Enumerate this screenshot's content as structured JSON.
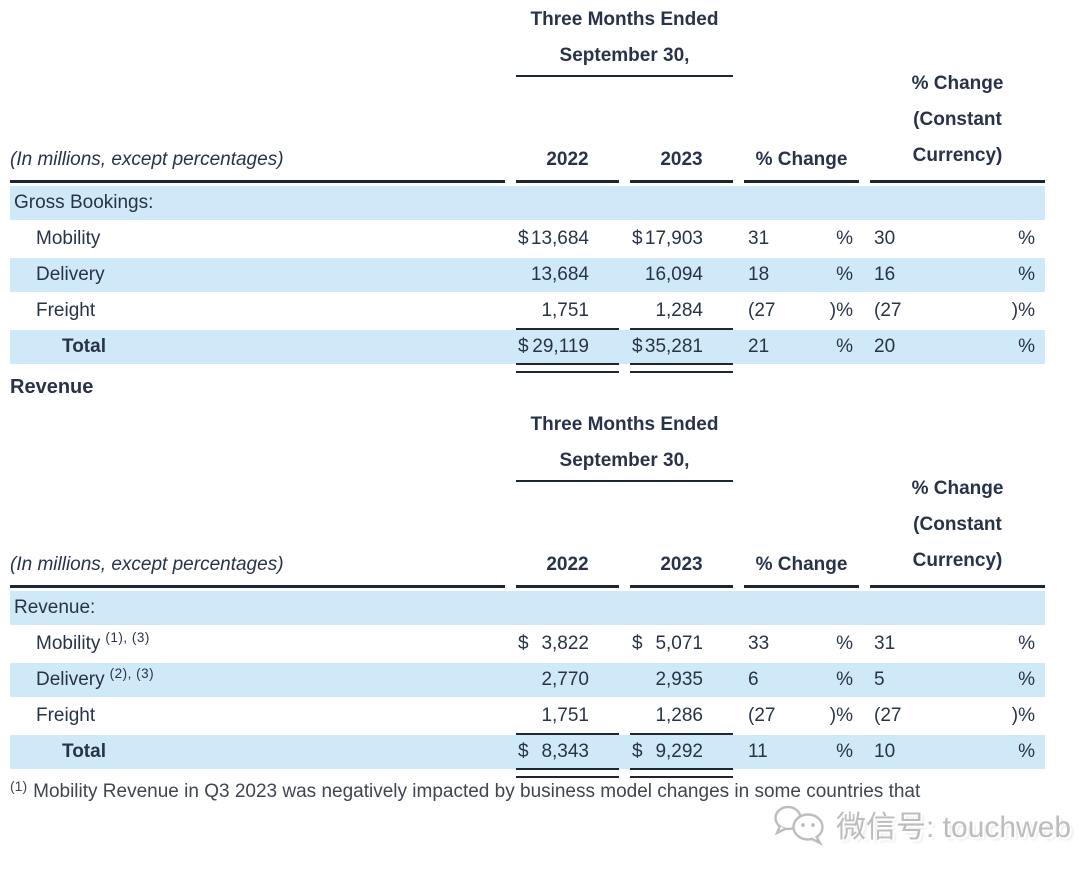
{
  "report": {
    "section_heading": "Revenue",
    "footnote_sup": "(1)",
    "footnote_text": "Mobility Revenue in Q3 2023 was negatively impacted by business model changes in some countries that",
    "watermark_label": "微信号: touchweb",
    "watermark_icon": "wechat-icon"
  },
  "colors": {
    "row_highlight": "#cfe9f8",
    "rule": "#1d2633",
    "text": "#28334a",
    "watermark": "#bdbdbd"
  },
  "tables": [
    {
      "id": "gross-bookings",
      "period_line1": "Three Months Ended",
      "period_line2": "September 30,",
      "unit_note": "(In millions, except percentages)",
      "year_headers": [
        "2022",
        "2023"
      ],
      "pct_change_header": "% Change",
      "cc_header_lines": [
        "% Change",
        "(Constant",
        "Currency)"
      ],
      "rows": [
        {
          "type": "section",
          "label": "Gross Bookings:",
          "indent": "section",
          "shaded": true
        },
        {
          "type": "data",
          "label": "Mobility",
          "sup": "",
          "indent": "item",
          "shaded": false,
          "cur2022": "$",
          "amt2022": "13,684",
          "cur2023": "$",
          "amt2023": "17,903",
          "chg_num": "31",
          "chg_sign": "%",
          "cc_num": "30",
          "cc_sign": "%",
          "rule": "none"
        },
        {
          "type": "data",
          "label": "Delivery",
          "sup": "",
          "indent": "item",
          "shaded": true,
          "cur2022": "",
          "amt2022": "13,684",
          "cur2023": "",
          "amt2023": "16,094",
          "chg_num": "18",
          "chg_sign": "%",
          "cc_num": "16",
          "cc_sign": "%",
          "rule": "none"
        },
        {
          "type": "data",
          "label": "Freight",
          "sup": "",
          "indent": "item",
          "shaded": false,
          "cur2022": "",
          "amt2022": "1,751",
          "cur2023": "",
          "amt2023": "1,284",
          "chg_num": "(27",
          "chg_sign": ")%",
          "cc_num": "(27",
          "cc_sign": ")%",
          "rule": "single"
        },
        {
          "type": "data",
          "label": "Total",
          "sup": "",
          "indent": "total",
          "shaded": true,
          "cur2022": "$",
          "amt2022": "29,119",
          "cur2023": "$",
          "amt2023": "35,281",
          "chg_num": "21",
          "chg_sign": "%",
          "cc_num": "20",
          "cc_sign": "%",
          "rule": "double"
        }
      ]
    },
    {
      "id": "revenue",
      "period_line1": "Three Months Ended",
      "period_line2": "September 30,",
      "unit_note": "(In millions, except percentages)",
      "year_headers": [
        "2022",
        "2023"
      ],
      "pct_change_header": "% Change",
      "cc_header_lines": [
        "% Change",
        "(Constant",
        "Currency)"
      ],
      "rows": [
        {
          "type": "section",
          "label": "Revenue:",
          "indent": "section",
          "shaded": true
        },
        {
          "type": "data",
          "label": "Mobility",
          "sup": "(1), (3)",
          "indent": "item",
          "shaded": false,
          "cur2022": "$",
          "amt2022": "3,822",
          "cur2023": "$",
          "amt2023": "5,071",
          "chg_num": "33",
          "chg_sign": "%",
          "cc_num": "31",
          "cc_sign": "%",
          "rule": "none"
        },
        {
          "type": "data",
          "label": "Delivery",
          "sup": "(2), (3)",
          "indent": "item",
          "shaded": true,
          "cur2022": "",
          "amt2022": "2,770",
          "cur2023": "",
          "amt2023": "2,935",
          "chg_num": "6",
          "chg_sign": "%",
          "cc_num": "5",
          "cc_sign": "%",
          "rule": "none"
        },
        {
          "type": "data",
          "label": "Freight",
          "sup": "",
          "indent": "item",
          "shaded": false,
          "cur2022": "",
          "amt2022": "1,751",
          "cur2023": "",
          "amt2023": "1,286",
          "chg_num": "(27",
          "chg_sign": ")%",
          "cc_num": "(27",
          "cc_sign": ")%",
          "rule": "single"
        },
        {
          "type": "data",
          "label": "Total",
          "sup": "",
          "indent": "total",
          "shaded": true,
          "cur2022": "$",
          "amt2022": "8,343",
          "cur2023": "$",
          "amt2023": "9,292",
          "chg_num": "11",
          "chg_sign": "%",
          "cc_num": "10",
          "cc_sign": "%",
          "rule": "double"
        }
      ]
    }
  ]
}
